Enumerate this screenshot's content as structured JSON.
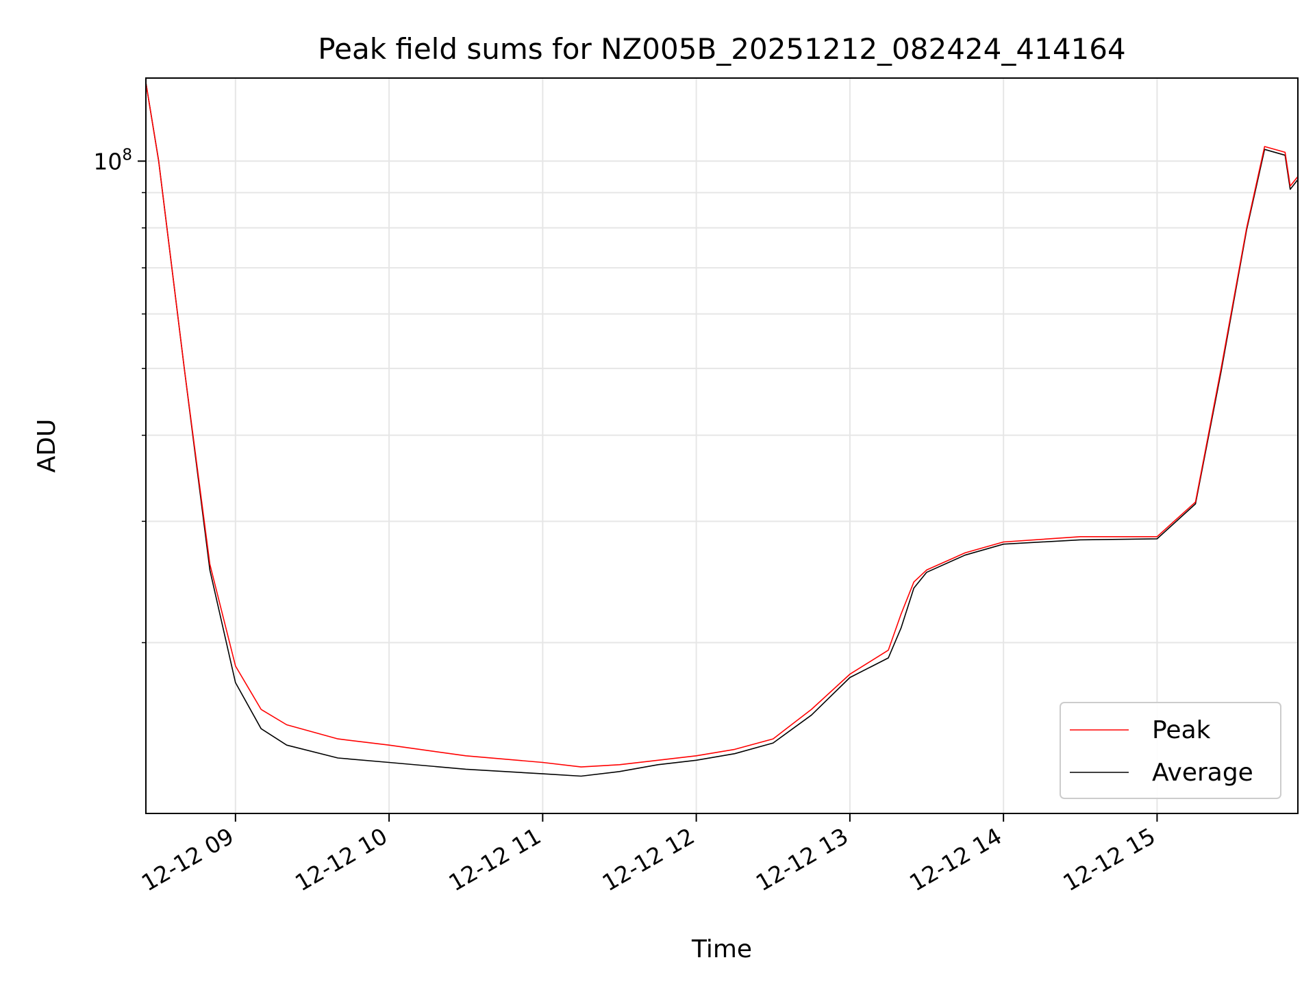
{
  "chart_data": {
    "type": "line",
    "title": "Peak field sums for NZ005B_20251212_082424_414164",
    "xlabel": "Time",
    "ylabel": "ADU",
    "y_scale": "log",
    "x_ticks": [
      "12-12 09",
      "12-12 10",
      "12-12 11",
      "12-12 12",
      "12-12 13",
      "12-12 14",
      "12-12 15"
    ],
    "y_ticks": [
      "10^8"
    ],
    "x_range": [
      "12-12 08:25",
      "12-12 15:55"
    ],
    "y_range": [
      11300000,
      132000000
    ],
    "grid": true,
    "legend": {
      "placement": "lower right",
      "entries": [
        "Peak",
        "Average"
      ]
    },
    "x": [
      "12-12 08:25",
      "12-12 08:30",
      "12-12 08:40",
      "12-12 08:50",
      "12-12 09:00",
      "12-12 09:10",
      "12-12 09:20",
      "12-12 09:40",
      "12-12 10:00",
      "12-12 10:30",
      "12-12 11:00",
      "12-12 11:15",
      "12-12 11:30",
      "12-12 11:45",
      "12-12 12:00",
      "12-12 12:15",
      "12-12 12:30",
      "12-12 12:45",
      "12-12 13:00",
      "12-12 13:15",
      "12-12 13:20",
      "12-12 13:25",
      "12-12 13:30",
      "12-12 13:45",
      "12-12 14:00",
      "12-12 14:30",
      "12-12 15:00",
      "12-12 15:15",
      "12-12 15:25",
      "12-12 15:35",
      "12-12 15:42",
      "12-12 15:50",
      "12-12 15:52",
      "12-12 15:55"
    ],
    "series": [
      {
        "name": "Peak",
        "color": "#ff0000",
        "values": [
          130000000,
          100000000,
          50000000,
          26000000,
          18500000,
          16000000,
          15200000,
          14500000,
          14200000,
          13700000,
          13400000,
          13200000,
          13300000,
          13500000,
          13700000,
          14000000,
          14500000,
          16000000,
          18000000,
          19500000,
          22000000,
          24500000,
          25500000,
          27000000,
          28000000,
          28500000,
          28500000,
          32000000,
          50000000,
          80000000,
          105000000,
          103000000,
          92000000,
          95000000
        ]
      },
      {
        "name": "Average",
        "color": "#000000",
        "values": [
          130000000,
          100000000,
          50000000,
          25500000,
          17500000,
          15000000,
          14200000,
          13600000,
          13400000,
          13100000,
          12900000,
          12800000,
          13000000,
          13300000,
          13500000,
          13800000,
          14300000,
          15700000,
          17800000,
          19000000,
          21000000,
          24000000,
          25300000,
          26800000,
          27800000,
          28200000,
          28300000,
          31800000,
          49500000,
          79500000,
          104000000,
          102000000,
          91000000,
          94000000
        ]
      }
    ]
  }
}
